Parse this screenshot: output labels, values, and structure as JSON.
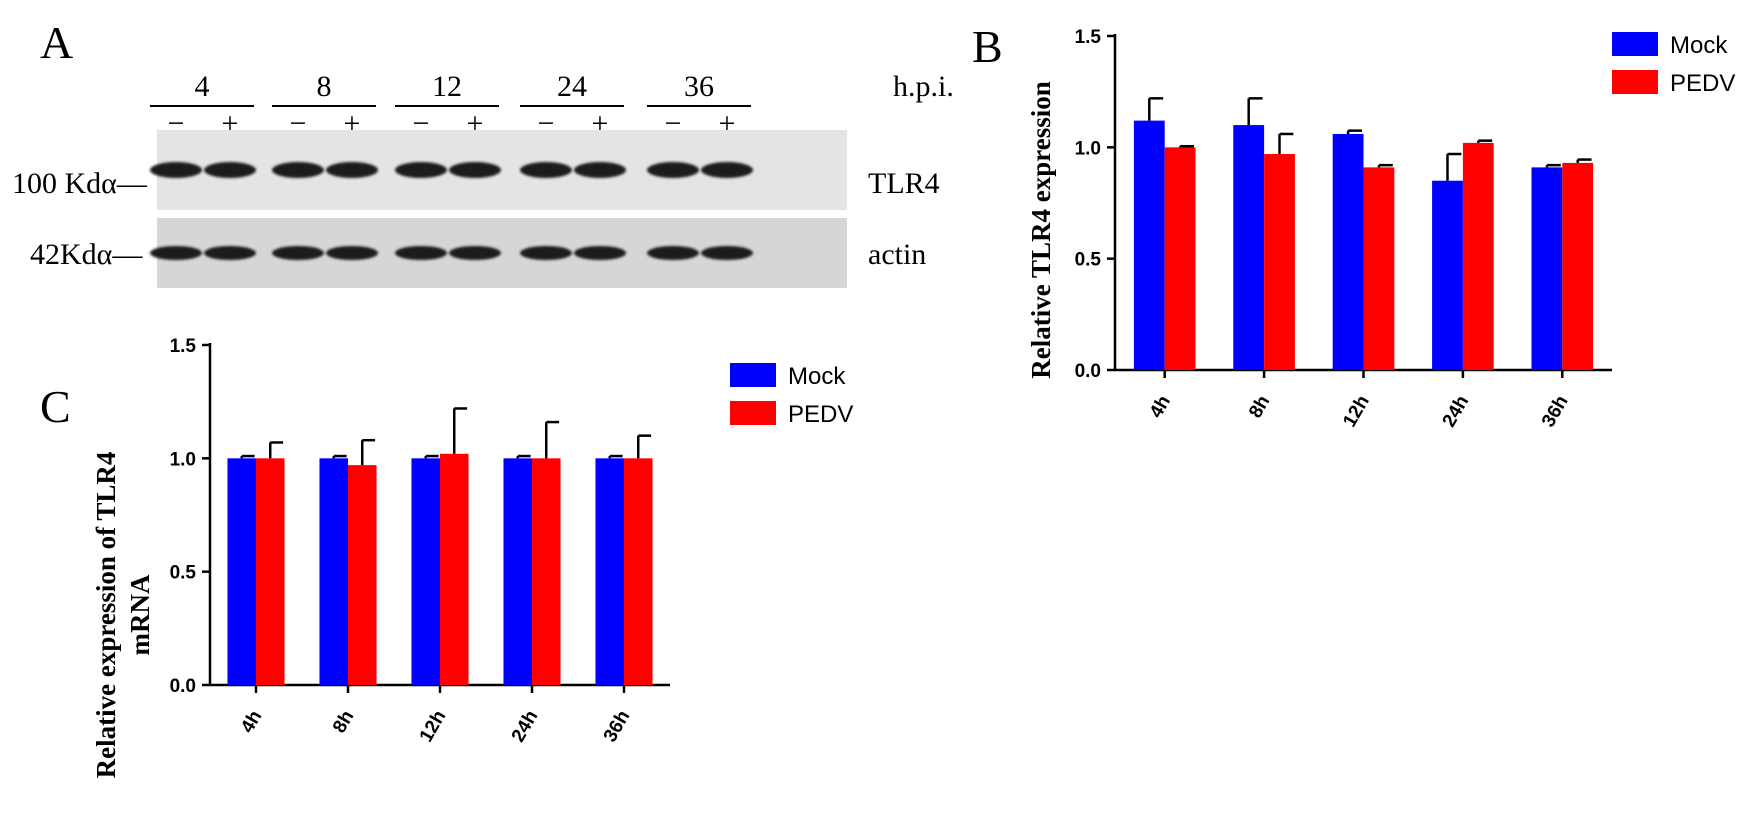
{
  "figure": {
    "panel_a": {
      "letter": "A",
      "time_points": [
        "4",
        "8",
        "12",
        "24",
        "36"
      ],
      "time_unit": "h.p.i.",
      "minus_sign": "−",
      "plus_sign": "+",
      "blots": [
        {
          "marker": "100 Kdα—",
          "protein": "TLR4"
        },
        {
          "marker": "42Kdα—",
          "protein": "actin"
        }
      ]
    }
  },
  "chart_data": [
    {
      "panel": "B",
      "type": "bar",
      "categories": [
        "4h",
        "8h",
        "12h",
        "24h",
        "36h"
      ],
      "ylabel": "Relative TLR4 expression",
      "ylim": [
        0,
        1.5
      ],
      "yticks": [
        "0.0",
        "0.5",
        "1.0",
        "1.5"
      ],
      "legend_position": "top-right",
      "series": [
        {
          "name": "Mock",
          "color": "#0000ff",
          "values": [
            1.12,
            1.1,
            1.06,
            0.85,
            0.91
          ],
          "errors": [
            0.1,
            0.12,
            0.015,
            0.12,
            0.01
          ]
        },
        {
          "name": "PEDV",
          "color": "#ff0000",
          "values": [
            1.0,
            0.97,
            0.91,
            1.02,
            0.93
          ],
          "errors": [
            0.005,
            0.09,
            0.01,
            0.01,
            0.015
          ]
        }
      ]
    },
    {
      "panel": "C",
      "type": "bar",
      "categories": [
        "4h",
        "8h",
        "12h",
        "24h",
        "36h"
      ],
      "ylabel_lines": [
        "Relative expression of TLR4",
        "mRNA"
      ],
      "ylim": [
        0,
        1.5
      ],
      "yticks": [
        "0.0",
        "0.5",
        "1.0",
        "1.5"
      ],
      "legend_position": "top-right",
      "series": [
        {
          "name": "Mock",
          "color": "#0000ff",
          "values": [
            1.0,
            1.0,
            1.0,
            1.0,
            1.0
          ],
          "errors": [
            0.01,
            0.01,
            0.01,
            0.01,
            0.01
          ]
        },
        {
          "name": "PEDV",
          "color": "#ff0000",
          "values": [
            1.0,
            0.97,
            1.02,
            1.0,
            1.0
          ],
          "errors": [
            0.07,
            0.11,
            0.2,
            0.16,
            0.1
          ]
        }
      ]
    }
  ]
}
